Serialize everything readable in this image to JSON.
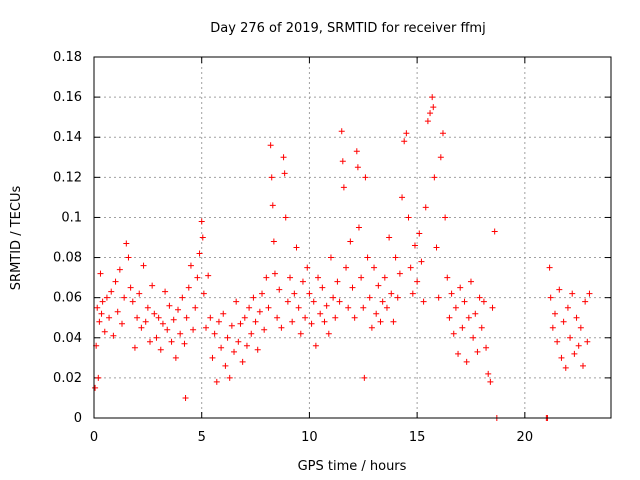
{
  "chart_data": {
    "type": "scatter",
    "title": "Day 276 of 2019, SRMTID for receiver ffmj",
    "xlabel": "GPS time / hours",
    "ylabel": "SRMTID / TECUs",
    "xlim": [
      0,
      24
    ],
    "ylim": [
      0,
      0.18
    ],
    "xticks": [
      0,
      5,
      10,
      15,
      20
    ],
    "xtick_labels": [
      "0",
      "5",
      "10",
      "15",
      "20"
    ],
    "yticks": [
      0,
      0.02,
      0.04,
      0.06,
      0.08,
      0.1,
      0.12,
      0.14,
      0.16,
      0.18
    ],
    "ytick_labels": [
      "0",
      "0.02",
      "0.04",
      "0.06",
      "0.08",
      "0.1",
      "0.12",
      "0.14",
      "0.16",
      "0.18"
    ],
    "grid": true,
    "marker": "plus",
    "series_color": "#ff0000",
    "series": [
      {
        "points": [
          [
            0.05,
            0.015
          ],
          [
            0.1,
            0.036
          ],
          [
            0.15,
            0.055
          ],
          [
            0.2,
            0.02
          ],
          [
            0.25,
            0.048
          ],
          [
            0.3,
            0.072
          ],
          [
            0.35,
            0.052
          ],
          [
            0.4,
            0.058
          ],
          [
            0.5,
            0.043
          ],
          [
            0.6,
            0.06
          ],
          [
            0.7,
            0.05
          ],
          [
            0.8,
            0.063
          ],
          [
            0.9,
            0.041
          ],
          [
            1.0,
            0.068
          ],
          [
            1.1,
            0.053
          ],
          [
            1.2,
            0.074
          ],
          [
            1.3,
            0.047
          ],
          [
            1.4,
            0.06
          ],
          [
            1.5,
            0.087
          ],
          [
            1.6,
            0.08
          ],
          [
            1.7,
            0.065
          ],
          [
            1.8,
            0.058
          ],
          [
            1.9,
            0.035
          ],
          [
            2.0,
            0.05
          ],
          [
            2.1,
            0.062
          ],
          [
            2.2,
            0.045
          ],
          [
            2.3,
            0.076
          ],
          [
            2.4,
            0.048
          ],
          [
            2.5,
            0.055
          ],
          [
            2.6,
            0.038
          ],
          [
            2.7,
            0.066
          ],
          [
            2.8,
            0.052
          ],
          [
            2.9,
            0.04
          ],
          [
            3.0,
            0.05
          ],
          [
            3.1,
            0.034
          ],
          [
            3.2,
            0.047
          ],
          [
            3.3,
            0.063
          ],
          [
            3.4,
            0.044
          ],
          [
            3.5,
            0.056
          ],
          [
            3.6,
            0.038
          ],
          [
            3.7,
            0.049
          ],
          [
            3.8,
            0.03
          ],
          [
            3.9,
            0.054
          ],
          [
            4.0,
            0.042
          ],
          [
            4.1,
            0.06
          ],
          [
            4.2,
            0.037
          ],
          [
            4.25,
            0.01
          ],
          [
            4.3,
            0.05
          ],
          [
            4.4,
            0.065
          ],
          [
            4.5,
            0.076
          ],
          [
            4.6,
            0.044
          ],
          [
            4.7,
            0.055
          ],
          [
            4.8,
            0.07
          ],
          [
            4.9,
            0.082
          ],
          [
            5.0,
            0.098
          ],
          [
            5.05,
            0.09
          ],
          [
            5.1,
            0.062
          ],
          [
            5.2,
            0.045
          ],
          [
            5.3,
            0.071
          ],
          [
            5.4,
            0.05
          ],
          [
            5.5,
            0.03
          ],
          [
            5.6,
            0.042
          ],
          [
            5.7,
            0.018
          ],
          [
            5.8,
            0.048
          ],
          [
            5.9,
            0.035
          ],
          [
            6.0,
            0.052
          ],
          [
            6.1,
            0.026
          ],
          [
            6.2,
            0.04
          ],
          [
            6.3,
            0.02
          ],
          [
            6.4,
            0.046
          ],
          [
            6.5,
            0.033
          ],
          [
            6.6,
            0.058
          ],
          [
            6.7,
            0.038
          ],
          [
            6.8,
            0.047
          ],
          [
            6.9,
            0.028
          ],
          [
            7.0,
            0.05
          ],
          [
            7.1,
            0.036
          ],
          [
            7.2,
            0.055
          ],
          [
            7.3,
            0.042
          ],
          [
            7.4,
            0.06
          ],
          [
            7.5,
            0.048
          ],
          [
            7.6,
            0.034
          ],
          [
            7.7,
            0.053
          ],
          [
            7.8,
            0.062
          ],
          [
            7.9,
            0.044
          ],
          [
            8.0,
            0.07
          ],
          [
            8.1,
            0.055
          ],
          [
            8.2,
            0.136
          ],
          [
            8.25,
            0.12
          ],
          [
            8.3,
            0.106
          ],
          [
            8.35,
            0.088
          ],
          [
            8.4,
            0.072
          ],
          [
            8.5,
            0.05
          ],
          [
            8.6,
            0.064
          ],
          [
            8.7,
            0.045
          ],
          [
            8.8,
            0.13
          ],
          [
            8.85,
            0.122
          ],
          [
            8.9,
            0.1
          ],
          [
            9.0,
            0.058
          ],
          [
            9.1,
            0.07
          ],
          [
            9.2,
            0.048
          ],
          [
            9.3,
            0.062
          ],
          [
            9.4,
            0.085
          ],
          [
            9.5,
            0.055
          ],
          [
            9.6,
            0.042
          ],
          [
            9.7,
            0.068
          ],
          [
            9.8,
            0.05
          ],
          [
            9.9,
            0.075
          ],
          [
            10.0,
            0.062
          ],
          [
            10.1,
            0.047
          ],
          [
            10.2,
            0.058
          ],
          [
            10.3,
            0.036
          ],
          [
            10.4,
            0.07
          ],
          [
            10.5,
            0.052
          ],
          [
            10.6,
            0.065
          ],
          [
            10.7,
            0.048
          ],
          [
            10.8,
            0.056
          ],
          [
            10.9,
            0.042
          ],
          [
            11.0,
            0.08
          ],
          [
            11.1,
            0.06
          ],
          [
            11.2,
            0.05
          ],
          [
            11.3,
            0.068
          ],
          [
            11.4,
            0.058
          ],
          [
            11.5,
            0.143
          ],
          [
            11.55,
            0.128
          ],
          [
            11.6,
            0.115
          ],
          [
            11.7,
            0.075
          ],
          [
            11.8,
            0.055
          ],
          [
            11.9,
            0.088
          ],
          [
            12.0,
            0.065
          ],
          [
            12.1,
            0.05
          ],
          [
            12.2,
            0.133
          ],
          [
            12.25,
            0.125
          ],
          [
            12.3,
            0.095
          ],
          [
            12.4,
            0.07
          ],
          [
            12.5,
            0.055
          ],
          [
            12.55,
            0.02
          ],
          [
            12.6,
            0.12
          ],
          [
            12.7,
            0.08
          ],
          [
            12.8,
            0.06
          ],
          [
            12.9,
            0.045
          ],
          [
            13.0,
            0.075
          ],
          [
            13.1,
            0.052
          ],
          [
            13.2,
            0.066
          ],
          [
            13.3,
            0.048
          ],
          [
            13.4,
            0.058
          ],
          [
            13.5,
            0.07
          ],
          [
            13.6,
            0.055
          ],
          [
            13.7,
            0.09
          ],
          [
            13.8,
            0.062
          ],
          [
            13.9,
            0.048
          ],
          [
            14.0,
            0.08
          ],
          [
            14.1,
            0.06
          ],
          [
            14.2,
            0.072
          ],
          [
            14.3,
            0.11
          ],
          [
            14.4,
            0.138
          ],
          [
            14.5,
            0.142
          ],
          [
            14.6,
            0.1
          ],
          [
            14.7,
            0.075
          ],
          [
            14.8,
            0.062
          ],
          [
            14.9,
            0.086
          ],
          [
            15.0,
            0.068
          ],
          [
            15.1,
            0.092
          ],
          [
            15.2,
            0.078
          ],
          [
            15.3,
            0.058
          ],
          [
            15.4,
            0.105
          ],
          [
            15.5,
            0.148
          ],
          [
            15.6,
            0.152
          ],
          [
            15.7,
            0.16
          ],
          [
            15.75,
            0.155
          ],
          [
            15.8,
            0.12
          ],
          [
            15.9,
            0.085
          ],
          [
            16.0,
            0.06
          ],
          [
            16.1,
            0.13
          ],
          [
            16.2,
            0.142
          ],
          [
            16.3,
            0.1
          ],
          [
            16.4,
            0.07
          ],
          [
            16.5,
            0.05
          ],
          [
            16.6,
            0.062
          ],
          [
            16.7,
            0.042
          ],
          [
            16.8,
            0.055
          ],
          [
            16.9,
            0.032
          ],
          [
            17.0,
            0.065
          ],
          [
            17.1,
            0.045
          ],
          [
            17.2,
            0.058
          ],
          [
            17.3,
            0.028
          ],
          [
            17.4,
            0.05
          ],
          [
            17.5,
            0.068
          ],
          [
            17.6,
            0.04
          ],
          [
            17.7,
            0.052
          ],
          [
            17.8,
            0.033
          ],
          [
            17.9,
            0.06
          ],
          [
            18.0,
            0.045
          ],
          [
            18.1,
            0.058
          ],
          [
            18.2,
            0.035
          ],
          [
            18.3,
            0.022
          ],
          [
            18.4,
            0.018
          ],
          [
            18.5,
            0.055
          ],
          [
            18.6,
            0.093
          ],
          [
            18.7,
            0.0
          ],
          [
            21.0,
            0.0
          ],
          [
            21.05,
            0.0
          ],
          [
            21.15,
            0.075
          ],
          [
            21.2,
            0.06
          ],
          [
            21.3,
            0.045
          ],
          [
            21.4,
            0.052
          ],
          [
            21.5,
            0.038
          ],
          [
            21.6,
            0.064
          ],
          [
            21.7,
            0.03
          ],
          [
            21.8,
            0.048
          ],
          [
            21.9,
            0.025
          ],
          [
            22.0,
            0.055
          ],
          [
            22.1,
            0.04
          ],
          [
            22.2,
            0.062
          ],
          [
            22.3,
            0.032
          ],
          [
            22.4,
            0.05
          ],
          [
            22.5,
            0.036
          ],
          [
            22.6,
            0.045
          ],
          [
            22.7,
            0.026
          ],
          [
            22.8,
            0.058
          ],
          [
            22.9,
            0.038
          ],
          [
            23.0,
            0.062
          ]
        ]
      }
    ]
  }
}
